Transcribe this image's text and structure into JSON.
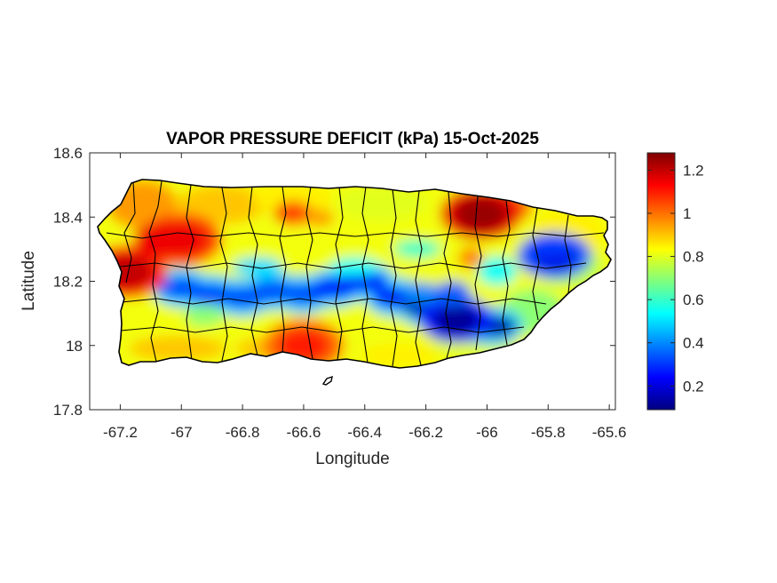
{
  "chart_data": {
    "type": "heatmap",
    "title": "VAPOR PRESSURE DEFICIT (kPa) 15-Oct-2025",
    "xlabel": "Longitude",
    "ylabel": "Latitude",
    "xlim": [
      -67.3,
      -65.58
    ],
    "ylim": [
      17.8,
      18.6
    ],
    "x_ticks": [
      -67.2,
      -67,
      -66.8,
      -66.6,
      -66.4,
      -66.2,
      -66,
      -65.8,
      -65.6
    ],
    "x_tick_labels": [
      "-67.2",
      "-67",
      "-66.8",
      "-66.6",
      "-66.4",
      "-66.2",
      "-66",
      "-65.8",
      "-65.6"
    ],
    "y_ticks": [
      17.8,
      18,
      18.2,
      18.4,
      18.6
    ],
    "y_tick_labels": [
      "17.8",
      "18",
      "18.2",
      "18.4",
      "18.6"
    ],
    "colorbar": {
      "colormap": "jet",
      "range": [
        0.09,
        1.28
      ],
      "ticks": [
        0.2,
        0.4,
        0.6,
        0.8,
        1,
        1.2
      ],
      "tick_labels": [
        "0.2",
        "0.4",
        "0.6",
        "0.8",
        "1",
        "1.2"
      ],
      "colors": [
        "#00007f",
        "#0000ff",
        "#007fff",
        "#00ffff",
        "#7fff7f",
        "#ffff00",
        "#ff7f00",
        "#ff0000",
        "#7f0000"
      ]
    },
    "grid": false,
    "outline_color": "#000000",
    "field_features": [
      {
        "region": "central mountain band",
        "lon": [
          -67.0,
          -65.95
        ],
        "lat": [
          18.08,
          18.25
        ],
        "value": 0.25
      },
      {
        "region": "east-central core",
        "lon": -66.1,
        "lat": 18.08,
        "value": 0.12
      },
      {
        "region": "northeast low",
        "lon": -65.78,
        "lat": 18.28,
        "value": 0.2
      },
      {
        "region": "northeast coast high",
        "lon": -66.02,
        "lat": 18.41,
        "value": 1.25
      },
      {
        "region": "west coast high",
        "lon": -67.18,
        "lat": 18.23,
        "value": 1.2
      },
      {
        "region": "northwest high",
        "lon": -67.0,
        "lat": 18.33,
        "value": 1.15
      },
      {
        "region": "south coast high",
        "lon": -66.6,
        "lat": 18.0,
        "value": 1.1
      }
    ]
  }
}
